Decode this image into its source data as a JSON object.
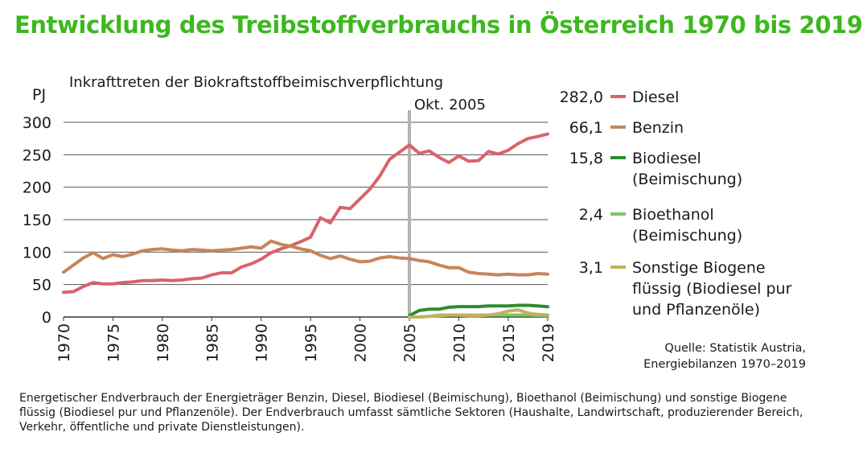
{
  "title": "Entwicklung des Treibstoffverbrauchs in Österreich 1970 bis 2019",
  "note": "Energetischer Endverbrauch der Energieträger Benzin, Diesel, Biodiesel (Beimischung), Bioethanol (Beimischung) und sonstige Biogene flüssig (Biodiesel pur und Pflanzenöle). Der Endverbrauch umfasst sämtliche Sektoren (Haushalte, Landwirtschaft, produzierender Bereich, Verkehr, öffentliche und private Dienstleistungen).",
  "source": [
    "Quelle: Statistik Austria,",
    "Energiebilanzen 1970–2019"
  ],
  "chart_data": {
    "type": "line",
    "ylabel": "PJ",
    "xlim": [
      1970,
      2019
    ],
    "ylim": [
      0,
      300
    ],
    "y_ticks": [
      0,
      50,
      100,
      150,
      200,
      250,
      300
    ],
    "x_ticks": [
      1970,
      1975,
      1980,
      1985,
      1990,
      1995,
      2000,
      2005,
      2010,
      2015,
      2019
    ],
    "grid": "horizontal",
    "annotation": {
      "x": 2005,
      "lines": [
        "Inkrafttreten der Biokraftstoffbeimischverpflichtung",
        "Okt. 2005"
      ]
    },
    "x": [
      1970,
      1971,
      1972,
      1973,
      1974,
      1975,
      1976,
      1977,
      1978,
      1979,
      1980,
      1981,
      1982,
      1983,
      1984,
      1985,
      1986,
      1987,
      1988,
      1989,
      1990,
      1991,
      1992,
      1993,
      1994,
      1995,
      1996,
      1997,
      1998,
      1999,
      2000,
      2001,
      2002,
      2003,
      2004,
      2005,
      2006,
      2007,
      2008,
      2009,
      2010,
      2011,
      2012,
      2013,
      2014,
      2015,
      2016,
      2017,
      2018,
      2019
    ],
    "series": [
      {
        "name": "Diesel",
        "end_label": "282,0",
        "legend_lines": [
          "Diesel"
        ],
        "color": "#d9636b",
        "values": [
          38,
          39,
          47,
          53,
          51,
          51,
          53,
          54,
          56,
          56,
          57,
          56,
          57,
          59,
          60,
          65,
          68,
          68,
          77,
          82,
          89,
          99,
          105,
          110,
          116,
          123,
          153,
          145,
          169,
          167,
          182,
          197,
          217,
          243,
          254,
          265,
          252,
          256,
          246,
          238,
          248,
          240,
          241,
          255,
          251,
          257,
          267,
          275,
          278,
          282
        ]
      },
      {
        "name": "Benzin",
        "end_label": "66,1",
        "legend_lines": [
          "Benzin"
        ],
        "color": "#c5865a",
        "values": [
          69,
          80,
          91,
          99,
          90,
          96,
          93,
          97,
          102,
          104,
          105,
          103,
          102,
          104,
          103,
          102,
          103,
          104,
          106,
          108,
          106,
          117,
          112,
          109,
          105,
          102,
          95,
          90,
          94,
          89,
          85,
          86,
          91,
          93,
          91,
          90,
          87,
          85,
          80,
          76,
          76,
          69,
          67,
          66,
          65,
          66,
          65,
          65,
          67,
          66.1
        ]
      },
      {
        "name": "Biodiesel (Beimischung)",
        "end_label": "15,8",
        "legend_lines": [
          "Biodiesel",
          "(Beimischung)"
        ],
        "color": "#2e8b2e",
        "values": [
          null,
          null,
          null,
          null,
          null,
          null,
          null,
          null,
          null,
          null,
          null,
          null,
          null,
          null,
          null,
          null,
          null,
          null,
          null,
          null,
          null,
          null,
          null,
          null,
          null,
          null,
          null,
          null,
          null,
          null,
          null,
          null,
          null,
          null,
          null,
          2,
          10,
          12,
          12,
          15,
          16,
          16,
          16,
          17,
          17,
          17,
          18,
          18,
          17,
          15.8
        ]
      },
      {
        "name": "Bioethanol (Beimischung)",
        "end_label": "2,4",
        "legend_lines": [
          "Bioethanol",
          "(Beimischung)"
        ],
        "color": "#7cc66a",
        "values": [
          null,
          null,
          null,
          null,
          null,
          null,
          null,
          null,
          null,
          null,
          null,
          null,
          null,
          null,
          null,
          null,
          null,
          null,
          null,
          null,
          null,
          null,
          null,
          null,
          null,
          null,
          null,
          null,
          null,
          null,
          null,
          null,
          null,
          null,
          null,
          null,
          0,
          1,
          3,
          3,
          3,
          3,
          3,
          3,
          3,
          3,
          3,
          3,
          2.5,
          2.4
        ]
      },
      {
        "name": "Sonstige Biogene flüssig (Biodiesel pur und Pflanzenöle)",
        "end_label": "3,1",
        "legend_lines": [
          "Sonstige Biogene",
          "flüssig (Biodiesel pur",
          "und Pflanzenöle)"
        ],
        "color": "#c4b15a",
        "values": [
          null,
          null,
          null,
          null,
          null,
          null,
          null,
          null,
          null,
          null,
          null,
          null,
          null,
          null,
          null,
          null,
          null,
          null,
          null,
          null,
          null,
          null,
          null,
          null,
          null,
          null,
          null,
          null,
          null,
          null,
          null,
          null,
          null,
          null,
          null,
          0,
          0,
          1,
          2,
          3,
          3,
          2,
          2,
          3,
          5,
          9,
          11,
          6,
          4,
          3.1
        ]
      }
    ]
  }
}
